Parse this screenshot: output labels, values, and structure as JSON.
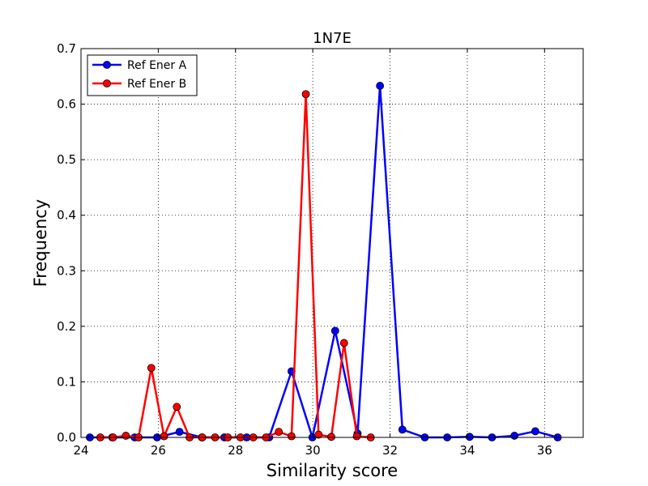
{
  "chart_data": {
    "type": "line",
    "title": "1N7E",
    "xlabel": "Similarity score",
    "ylabel": "Frequency",
    "xlim": [
      24,
      37
    ],
    "ylim": [
      0,
      0.7
    ],
    "x_ticks": [
      24,
      26,
      28,
      30,
      32,
      34,
      36
    ],
    "y_ticks": [
      0.0,
      0.1,
      0.2,
      0.3,
      0.4,
      0.5,
      0.6,
      0.7
    ],
    "x_tick_labels": [
      "24",
      "26",
      "28",
      "30",
      "32",
      "34",
      "36"
    ],
    "y_tick_labels": [
      "0.0",
      "0.1",
      "0.2",
      "0.3",
      "0.4",
      "0.5",
      "0.6",
      "0.7"
    ],
    "grid": true,
    "legend_position": "top-left",
    "series": [
      {
        "name": "Ref Ener A",
        "color": "#0000ff",
        "x": [
          24.23,
          24.81,
          25.39,
          25.97,
          26.55,
          27.13,
          27.71,
          28.29,
          28.87,
          29.45,
          29.99,
          30.58,
          31.16,
          31.74,
          32.32,
          32.9,
          33.48,
          34.06,
          34.64,
          35.22,
          35.76,
          36.34
        ],
        "y": [
          0.0,
          0.0,
          0.0,
          0.0,
          0.01,
          0.0,
          0.0,
          0.0,
          0.0,
          0.119,
          0.0,
          0.192,
          0.007,
          0.633,
          0.014,
          0.0,
          0.0,
          0.001,
          0.0,
          0.003,
          0.011,
          0.0
        ]
      },
      {
        "name": "Ref Ener B",
        "color": "#ff0000",
        "x": [
          24.5,
          24.83,
          25.16,
          25.49,
          25.82,
          26.15,
          26.48,
          26.81,
          27.14,
          27.47,
          27.8,
          28.13,
          28.46,
          28.79,
          29.12,
          29.45,
          29.82,
          30.15,
          30.48,
          30.81,
          31.14,
          31.5
        ],
        "y": [
          0.0,
          0.0,
          0.003,
          0.0,
          0.125,
          0.002,
          0.055,
          0.0,
          0.0,
          0.0,
          0.0,
          0.0,
          0.0,
          0.0,
          0.01,
          0.002,
          0.618,
          0.005,
          0.001,
          0.17,
          0.002,
          0.0
        ]
      }
    ]
  }
}
